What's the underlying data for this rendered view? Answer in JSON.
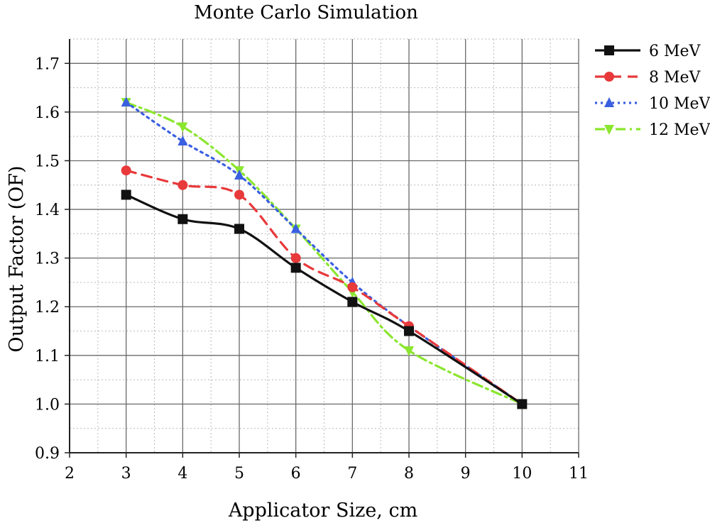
{
  "chart_data": {
    "type": "line",
    "title": "Monte Carlo Simulation",
    "xlabel": "Applicator Size, cm",
    "ylabel": "Output Factor (OF)",
    "xlim": [
      2,
      11
    ],
    "ylim": [
      0.9,
      1.75
    ],
    "xticks": [
      2,
      3,
      4,
      5,
      6,
      7,
      8,
      9,
      10,
      11
    ],
    "yticks": [
      0.9,
      1.0,
      1.1,
      1.2,
      1.3,
      1.4,
      1.5,
      1.6,
      1.7
    ],
    "ytick_labels": [
      "0.9",
      "1.0",
      "1.1",
      "1.2",
      "1.3",
      "1.4",
      "1.5",
      "1.6",
      "1.7"
    ],
    "grid": {
      "major": true,
      "minor": true
    },
    "legend_position": "outside-top-right",
    "series": [
      {
        "name": "6 MeV",
        "color": "#111111",
        "line": "solid",
        "marker": "square",
        "x": [
          3,
          4,
          5,
          6,
          7,
          8,
          10
        ],
        "y": [
          1.43,
          1.38,
          1.36,
          1.28,
          1.21,
          1.15,
          1.0
        ]
      },
      {
        "name": "8 MeV",
        "color": "#e8393b",
        "line": "dash",
        "marker": "circle",
        "x": [
          3,
          4,
          5,
          6,
          7,
          8,
          10
        ],
        "y": [
          1.48,
          1.45,
          1.43,
          1.3,
          1.24,
          1.16,
          1.0
        ]
      },
      {
        "name": "10 MeV",
        "color": "#3a5fe0",
        "line": "dot",
        "marker": "triangle-up",
        "x": [
          3,
          4,
          5,
          6,
          7,
          8,
          10
        ],
        "y": [
          1.62,
          1.54,
          1.47,
          1.36,
          1.25,
          1.16,
          1.0
        ]
      },
      {
        "name": "12 MeV",
        "color": "#8be62f",
        "line": "dashdot",
        "marker": "triangle-down",
        "x": [
          3,
          4,
          5,
          6,
          7,
          8,
          10
        ],
        "y": [
          1.62,
          1.57,
          1.48,
          1.36,
          1.23,
          1.11,
          1.0
        ]
      }
    ]
  }
}
